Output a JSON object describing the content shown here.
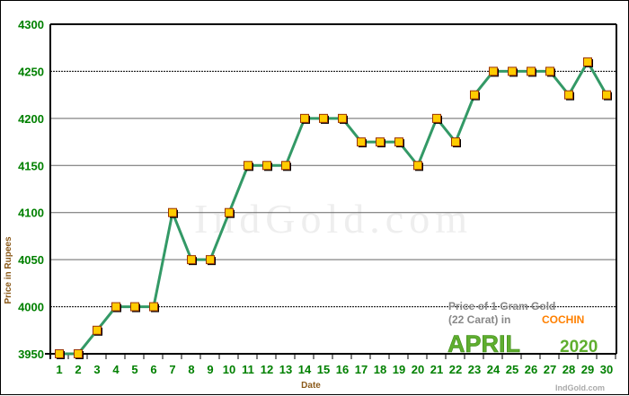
{
  "chart_data": {
    "type": "line",
    "title": "",
    "xlabel": "Date",
    "ylabel": "Price in Rupees",
    "x": [
      1,
      2,
      3,
      4,
      5,
      6,
      7,
      8,
      9,
      10,
      11,
      12,
      13,
      14,
      15,
      16,
      17,
      18,
      19,
      20,
      21,
      22,
      23,
      24,
      25,
      26,
      27,
      28,
      29,
      30
    ],
    "values": [
      3950,
      3950,
      3975,
      4000,
      4000,
      4000,
      4100,
      4050,
      4050,
      4100,
      4150,
      4150,
      4150,
      4200,
      4200,
      4200,
      4175,
      4175,
      4175,
      4150,
      4200,
      4175,
      4225,
      4250,
      4250,
      4250,
      4250,
      4225,
      4260,
      4225
    ],
    "ylim": [
      3950,
      4300
    ],
    "yticks": [
      3950,
      4000,
      4050,
      4100,
      4150,
      4200,
      4250,
      4300
    ],
    "grid": true,
    "line_color": "#339966",
    "marker_color": "#ffcc00",
    "marker_edge_color": "#993300",
    "tick_color": "#008000",
    "legend": {
      "line1": "Price of 1 Gram Gold",
      "line2_prefix": "(22 Carat) in",
      "city": "COCHIN",
      "month": "APRIL",
      "year": "2020"
    },
    "watermark": "IndGold.com",
    "credit": "IndGold.com"
  }
}
